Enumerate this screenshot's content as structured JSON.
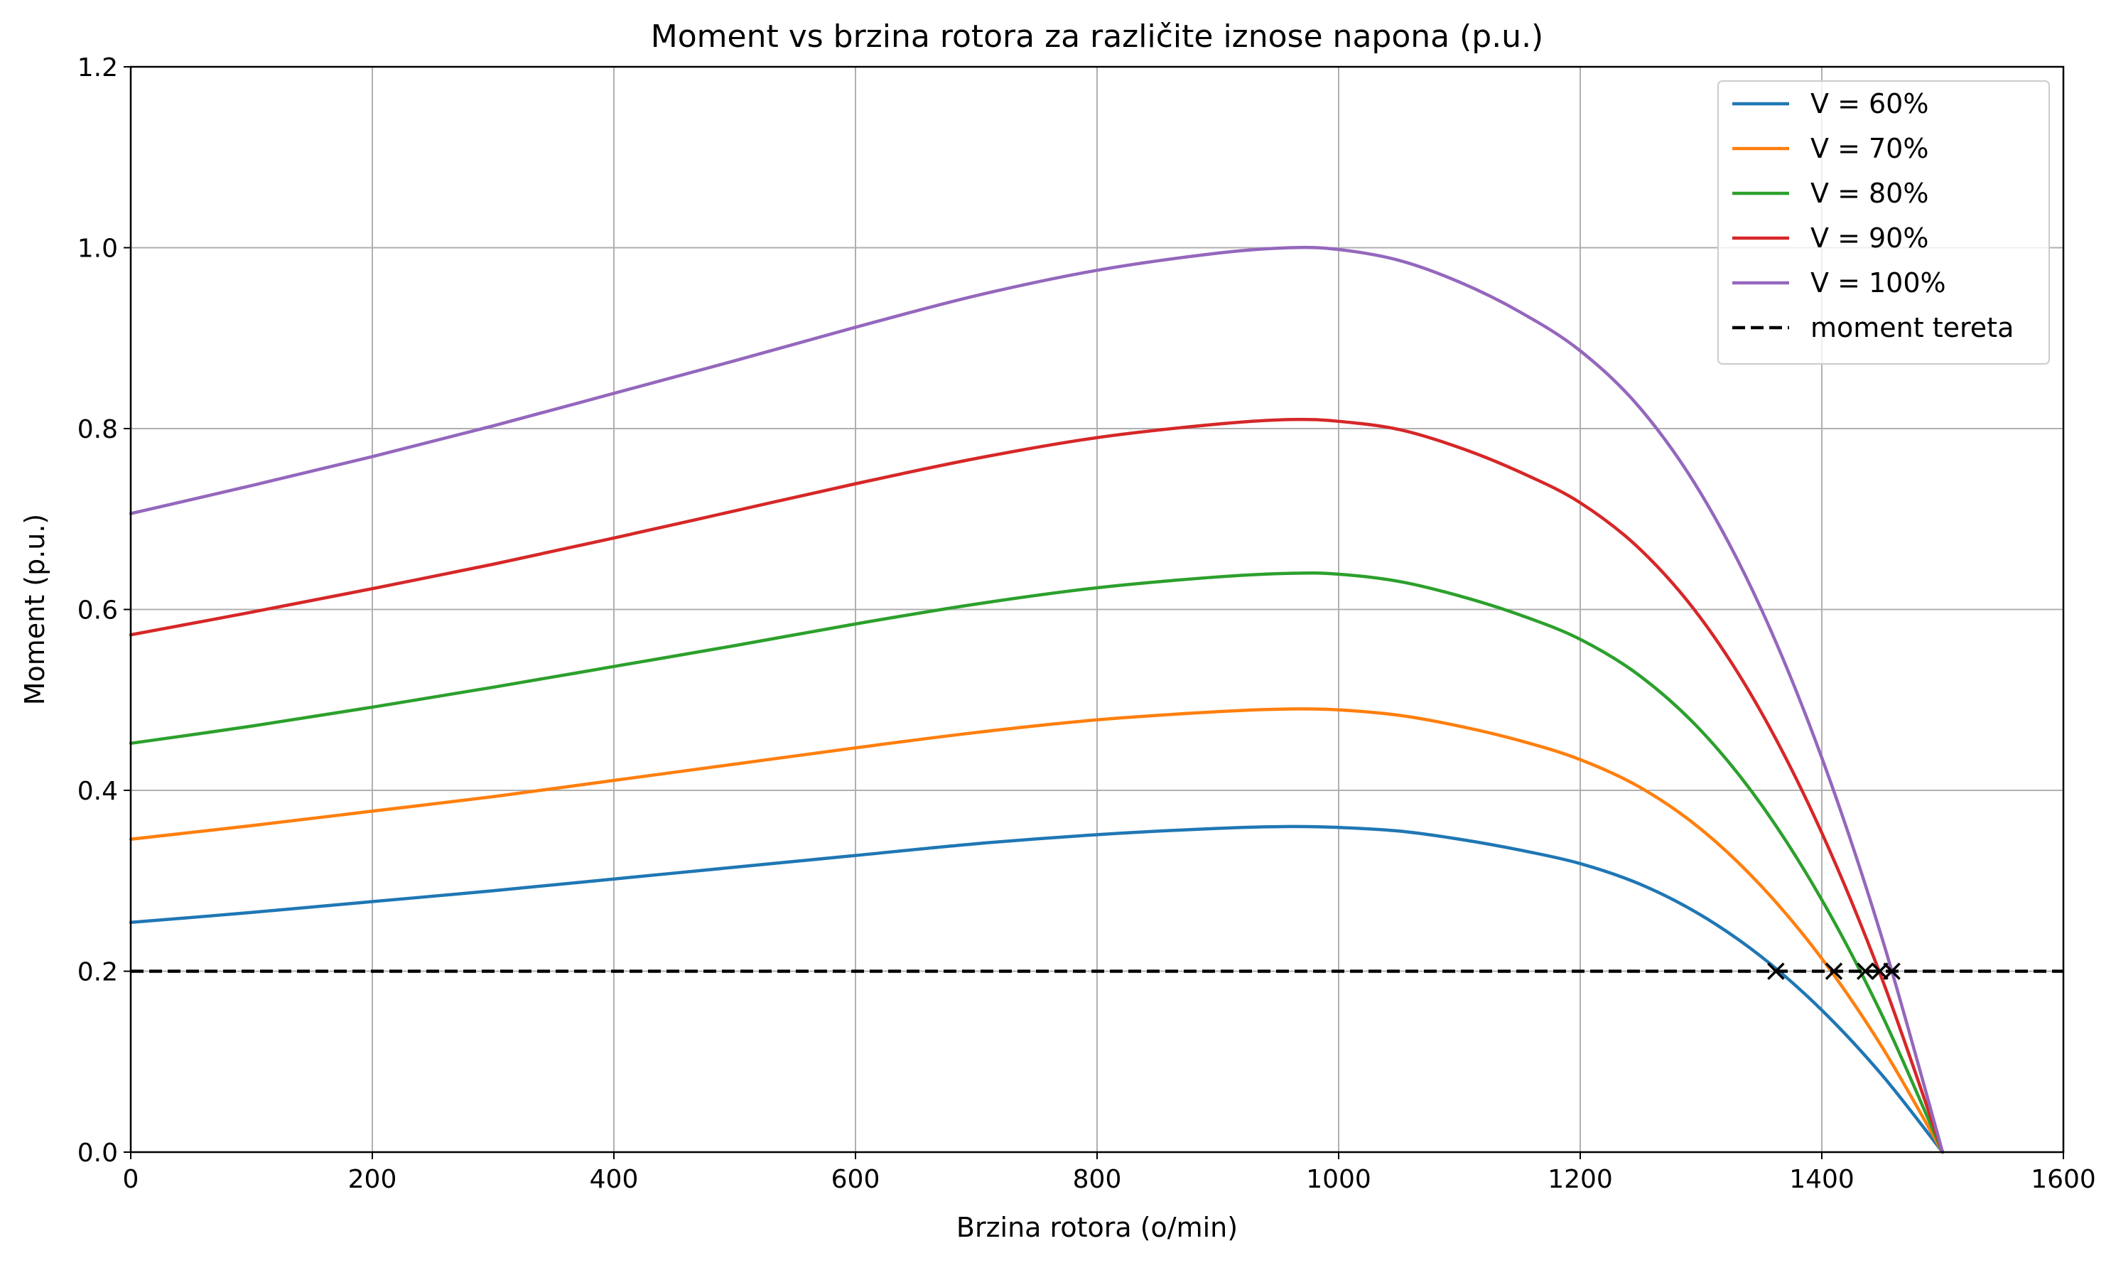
{
  "chart_data": {
    "type": "line",
    "title": "Moment vs brzina rotora za različite iznose napona (p.u.)",
    "xlabel": "Brzina rotora (o/min)",
    "ylabel": "Moment (p.u.)",
    "xlim": [
      0,
      1600
    ],
    "ylim": [
      0,
      1.2
    ],
    "xticks": [
      0,
      200,
      400,
      600,
      800,
      1000,
      1200,
      1400,
      1600
    ],
    "xtick_labels": [
      "0",
      "200",
      "400",
      "600",
      "800",
      "1000",
      "1200",
      "1400",
      "1600"
    ],
    "yticks": [
      0,
      0.2,
      0.4,
      0.6,
      0.8,
      1.0,
      1.2
    ],
    "ytick_labels": [
      "0.0",
      "0.2",
      "0.4",
      "0.6",
      "0.8",
      "1.0",
      "1.2"
    ],
    "grid": true,
    "legend_position": "top-right",
    "x": [
      0,
      100,
      200,
      300,
      400,
      500,
      600,
      700,
      800,
      900,
      960,
      1000,
      1050,
      1100,
      1150,
      1200,
      1250,
      1300,
      1350,
      1400,
      1450,
      1500
    ],
    "series": [
      {
        "name": "V = 60%",
        "color": "#1f77b4",
        "values": [
          0.254,
          0.265,
          0.277,
          0.289,
          0.302,
          0.315,
          0.328,
          0.341,
          0.351,
          0.358,
          0.36,
          0.359,
          0.355,
          0.346,
          0.334,
          0.319,
          0.296,
          0.262,
          0.216,
          0.157,
          0.085,
          0.0
        ]
      },
      {
        "name": "V = 70%",
        "color": "#ff7f0e",
        "values": [
          0.346,
          0.361,
          0.377,
          0.393,
          0.411,
          0.429,
          0.447,
          0.464,
          0.478,
          0.487,
          0.49,
          0.489,
          0.483,
          0.471,
          0.455,
          0.434,
          0.403,
          0.357,
          0.294,
          0.214,
          0.116,
          0.0
        ]
      },
      {
        "name": "V = 80%",
        "color": "#2ca02c",
        "values": [
          0.452,
          0.471,
          0.492,
          0.514,
          0.537,
          0.56,
          0.584,
          0.606,
          0.624,
          0.636,
          0.64,
          0.639,
          0.631,
          0.615,
          0.594,
          0.567,
          0.526,
          0.466,
          0.384,
          0.279,
          0.151,
          0.0
        ]
      },
      {
        "name": "V = 90%",
        "color": "#d62728",
        "values": [
          0.572,
          0.597,
          0.623,
          0.65,
          0.679,
          0.709,
          0.739,
          0.767,
          0.79,
          0.805,
          0.81,
          0.808,
          0.799,
          0.779,
          0.752,
          0.718,
          0.666,
          0.59,
          0.486,
          0.353,
          0.191,
          0.0
        ]
      },
      {
        "name": "V = 100%",
        "color": "#9467bd",
        "values": [
          0.706,
          0.737,
          0.769,
          0.803,
          0.839,
          0.875,
          0.912,
          0.947,
          0.975,
          0.994,
          1.0,
          0.998,
          0.986,
          0.962,
          0.929,
          0.886,
          0.822,
          0.728,
          0.6,
          0.436,
          0.236,
          0.0
        ]
      },
      {
        "name": "moment tereta",
        "color": "#000000",
        "dashed": true,
        "values": [
          0.2,
          0.2,
          0.2,
          0.2,
          0.2,
          0.2,
          0.2,
          0.2,
          0.2,
          0.2,
          0.2,
          0.2,
          0.2,
          0.2,
          0.2,
          0.2,
          0.2,
          0.2,
          0.2,
          0.2,
          0.2,
          0.2
        ]
      }
    ],
    "intersections": {
      "marker": "x",
      "color": "#000000",
      "points": [
        {
          "x": 1362,
          "y": 0.2
        },
        {
          "x": 1410,
          "y": 0.2
        },
        {
          "x": 1436,
          "y": 0.2
        },
        {
          "x": 1448,
          "y": 0.2
        },
        {
          "x": 1458,
          "y": 0.2
        }
      ]
    }
  }
}
